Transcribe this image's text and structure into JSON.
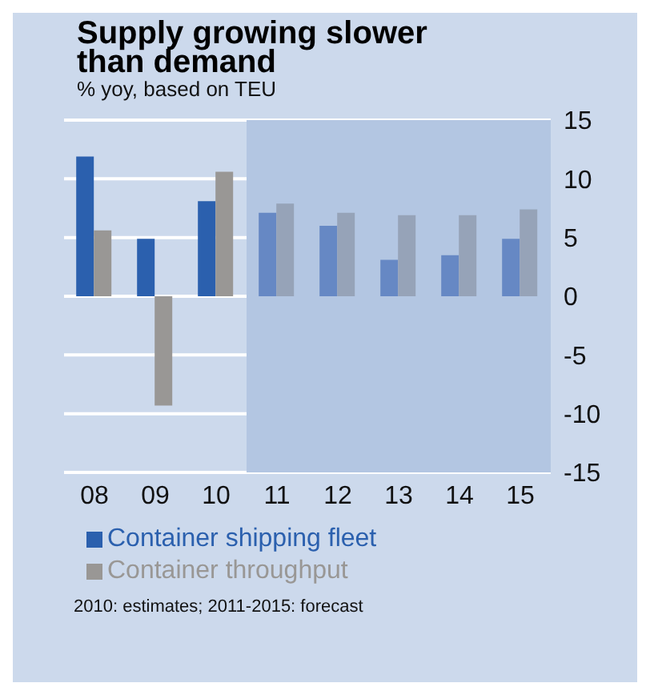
{
  "chart_data": {
    "type": "bar",
    "title": "Supply growing slower than demand",
    "subtitle": "% yoy, based on TEU",
    "categories": [
      "08",
      "09",
      "10",
      "11",
      "12",
      "13",
      "14",
      "15"
    ],
    "series": [
      {
        "name": "Container shipping fleet",
        "color": "#2b60ae",
        "colors": [
          "#2b60ae",
          "#2b60ae",
          "#2b60ae",
          "#6688c4",
          "#6688c4",
          "#6688c4",
          "#6688c4",
          "#6688c4"
        ],
        "values": [
          11.9,
          4.9,
          8.1,
          7.1,
          6.0,
          3.1,
          3.5,
          4.9
        ]
      },
      {
        "name": "Container throughput",
        "color": "#999795",
        "colors": [
          "#999795",
          "#999795",
          "#999795",
          "#96a3b8",
          "#96a3b8",
          "#96a3b8",
          "#96a3b8",
          "#96a3b8"
        ],
        "values": [
          5.6,
          -9.3,
          10.6,
          7.9,
          7.1,
          6.9,
          6.9,
          7.4
        ]
      }
    ],
    "ylim": [
      -15,
      15
    ],
    "yticks": [
      -15,
      -10,
      -5,
      0,
      5,
      10,
      15
    ],
    "grid": "y",
    "legend": "bottom",
    "bands": [
      {
        "axis": "x",
        "from": "11",
        "to": "15",
        "color": "#b3c6e2"
      }
    ],
    "annotations": [
      "2010: estimates; 2011-2015: forecast"
    ]
  }
}
